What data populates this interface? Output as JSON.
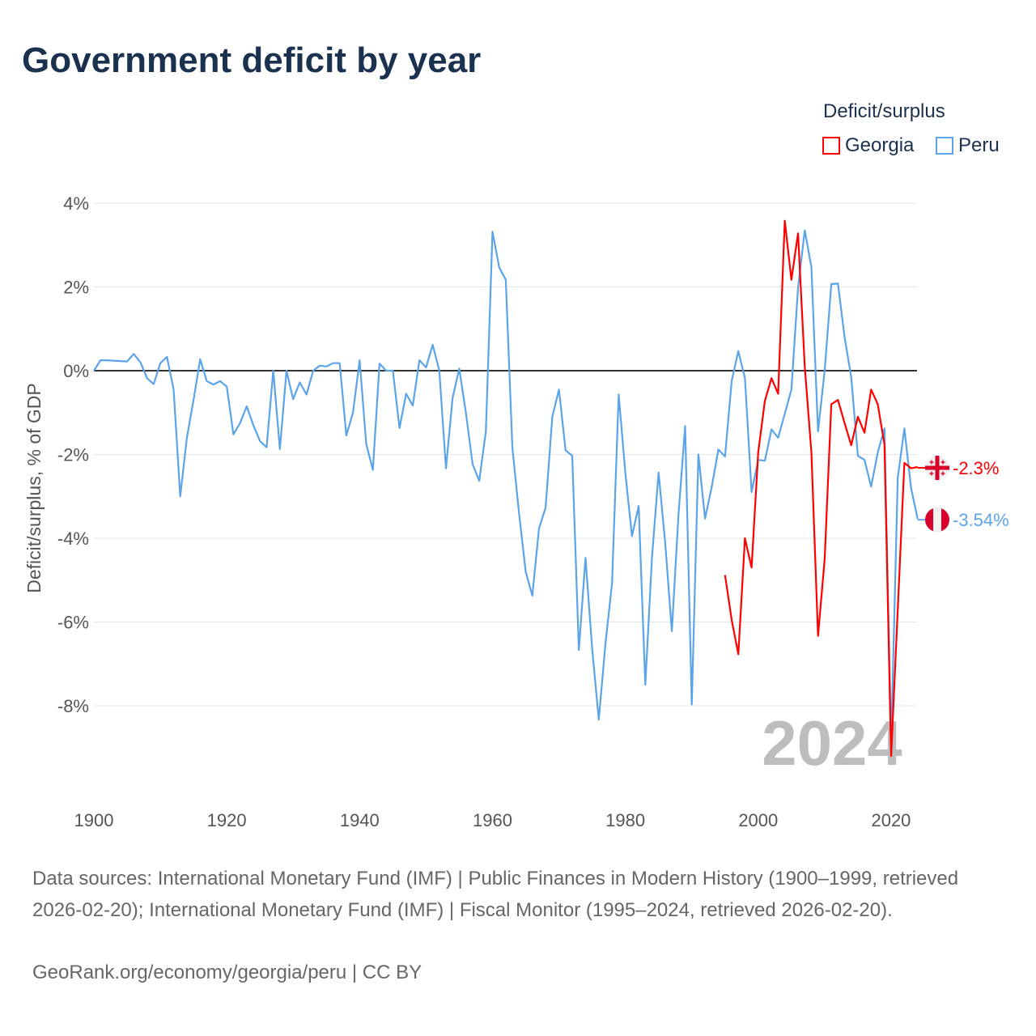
{
  "chart_data": {
    "type": "line",
    "title": "Government deficit by year",
    "xlabel": "",
    "ylabel": "Deficit/surplus, % of GDP",
    "xlim": [
      1900,
      2024
    ],
    "ylim": [
      -10,
      4
    ],
    "x_ticks": [
      "1900",
      "1920",
      "1940",
      "1960",
      "1980",
      "2000",
      "2020"
    ],
    "y_ticks": [
      {
        "value": 4,
        "label": "4%"
      },
      {
        "value": 2,
        "label": "2%"
      },
      {
        "value": 0,
        "label": "0%"
      },
      {
        "value": -2,
        "label": "-2%"
      },
      {
        "value": -4,
        "label": "-4%"
      },
      {
        "value": -6,
        "label": "-6%"
      },
      {
        "value": -8,
        "label": "-8%"
      }
    ],
    "grid": true,
    "legend_title": "Deficit/surplus",
    "legend_placement": "top-right",
    "year_watermark": "2024",
    "series": [
      {
        "name": "Georgia",
        "color": "#ff0000",
        "end_label": "-2.3%",
        "start_year": 1995,
        "values": [
          -4.88,
          -5.95,
          -6.77,
          -4.0,
          -4.7,
          -1.95,
          -0.72,
          -0.18,
          -0.55,
          3.58,
          2.17,
          3.28,
          0.1,
          -1.95,
          -6.33,
          -4.5,
          -0.8,
          -0.7,
          -1.25,
          -1.78,
          -1.1,
          -1.48,
          -0.45,
          -0.8,
          -1.77,
          -9.2,
          -5.7,
          -2.2,
          -2.33,
          -2.3
        ]
      },
      {
        "name": "Peru",
        "color": "#5ba4ea",
        "end_label": "-3.54%",
        "start_year": 1900,
        "values": [
          0,
          0.25,
          0.25,
          0.24,
          0.23,
          0.22,
          0.4,
          0.2,
          -0.18,
          -0.32,
          0.18,
          0.33,
          -0.45,
          -3.0,
          -1.6,
          -0.7,
          0.27,
          -0.25,
          -0.33,
          -0.25,
          -0.38,
          -1.52,
          -1.25,
          -0.85,
          -1.3,
          -1.68,
          -1.83,
          0,
          -1.87,
          0,
          -0.68,
          -0.28,
          -0.57,
          0,
          0.12,
          0.1,
          0.18,
          0.18,
          -1.55,
          -1.0,
          0.25,
          -1.75,
          -2.37,
          0.17,
          0,
          0,
          -1.37,
          -0.55,
          -0.83,
          0.25,
          0.08,
          0.62,
          0,
          -2.33,
          -0.65,
          0.05,
          -1.0,
          -2.23,
          -2.63,
          -1.45,
          3.32,
          2.47,
          2.17,
          -1.85,
          -3.4,
          -4.8,
          -5.37,
          -3.77,
          -3.27,
          -1.1,
          -0.45,
          -1.9,
          -2.03,
          -6.67,
          -4.47,
          -6.63,
          -8.33,
          -6.53,
          -5.07,
          -0.57,
          -2.43,
          -3.95,
          -3.23,
          -7.5,
          -4.47,
          -2.43,
          -4.12,
          -6.22,
          -3.43,
          -1.32,
          -7.97,
          -2.0,
          -3.53,
          -2.78,
          -1.88,
          -2.05,
          -0.25,
          0.47,
          -0.18,
          -2.9,
          -2.13,
          -2.15,
          -1.4,
          -1.6,
          -1.03,
          -0.45,
          1.98,
          3.35,
          2.47,
          -1.45,
          0.0,
          2.07,
          2.08,
          0.8,
          -0.15,
          -2.03,
          -2.13,
          -2.77,
          -1.95,
          -1.38,
          -8.9,
          -2.55,
          -1.38,
          -2.8,
          -3.54
        ]
      }
    ]
  },
  "footer": {
    "sources": "Data sources: International Monetary Fund (IMF) | Public Finances in Modern History (1900–1999, retrieved 2026-02-20); International Monetary Fund (IMF) | Fiscal Monitor (1995–2024, retrieved 2026-02-20).",
    "credit": "GeoRank.org/economy/georgia/peru | CC BY"
  }
}
